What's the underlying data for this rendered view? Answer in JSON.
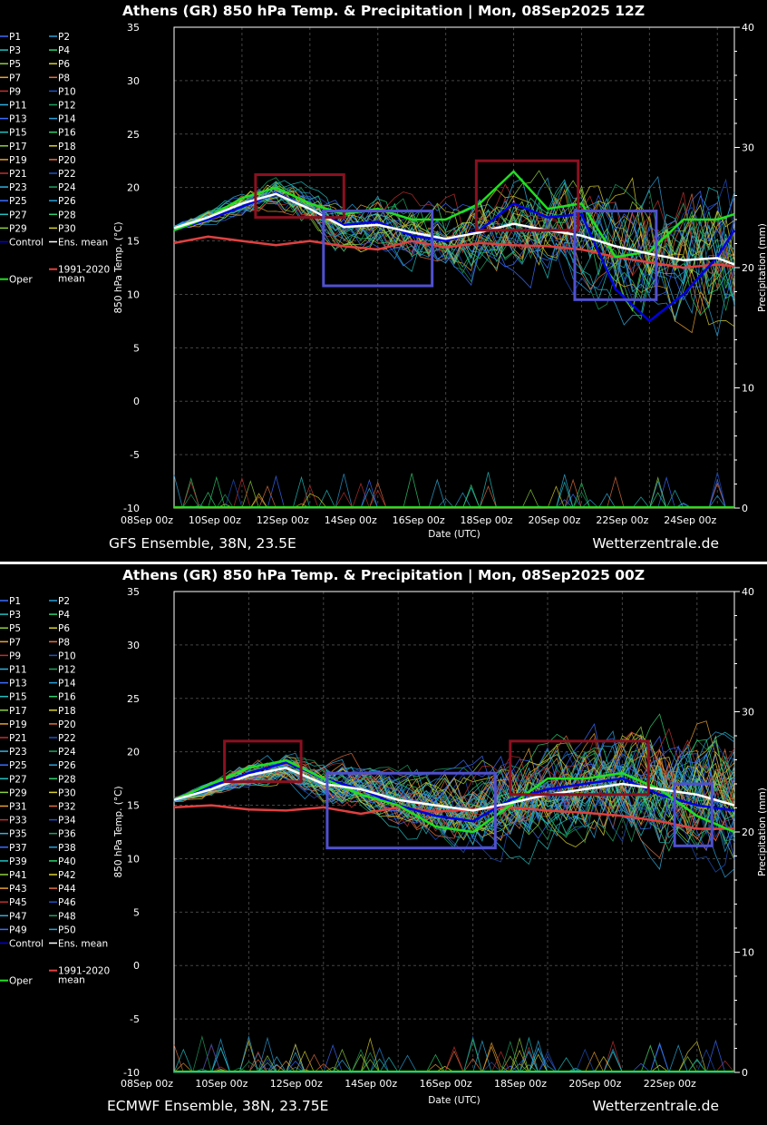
{
  "charts": [
    {
      "title": "Athens  (GR)  850 hPa Temp. & Precipitation | Mon, 08Sep2025 12Z",
      "footer_left": "GFS Ensemble, 38N, 23.5E",
      "footer_right": "Wetterzentrale.de",
      "xlabel": "Date (UTC)",
      "ylabel_left": "850 hPa Temp. (°C)",
      "ylabel_right": "Precipitation (mm)",
      "xticks": [
        "08Sep 00z",
        "10Sep 00z",
        "12Sep 00z",
        "14Sep 00z",
        "16Sep 00z",
        "18Sep 00z",
        "20Sep 00z",
        "22Sep 00z",
        "24Sep 00z"
      ],
      "legend": [
        "P1",
        "P2",
        "P3",
        "P4",
        "P5",
        "P6",
        "P7",
        "P8",
        "P9",
        "P10",
        "P11",
        "P12",
        "P13",
        "P14",
        "P15",
        "P16",
        "P17",
        "P18",
        "P19",
        "P20",
        "P21",
        "P22",
        "P23",
        "P24",
        "P25",
        "P26",
        "P27",
        "P28",
        "P29",
        "P30",
        "Control",
        "Ens. mean"
      ],
      "legend_clim": "1991-2020",
      "legend_clim2": "mean",
      "legend_oper": "Oper"
    },
    {
      "title": "Athens  (GR)  850 hPa Temp. & Precipitation | Mon, 08Sep2025 00Z",
      "footer_left": "ECMWF Ensemble, 38N, 23.75E",
      "footer_right": "Wetterzentrale.de",
      "xlabel": "Date (UTC)",
      "ylabel_left": "850 hPa Temp. (°C)",
      "ylabel_right": "Precipitation (mm)",
      "xticks": [
        "08Sep 00z",
        "10Sep 00z",
        "12Sep 00z",
        "14Sep 00z",
        "16Sep 00z",
        "18Sep 00z",
        "20Sep 00z",
        "22Sep 00z"
      ],
      "legend": [
        "P1",
        "P2",
        "P3",
        "P4",
        "P5",
        "P6",
        "P7",
        "P8",
        "P9",
        "P10",
        "P11",
        "P12",
        "P13",
        "P14",
        "P15",
        "P16",
        "P17",
        "P18",
        "P19",
        "P20",
        "P21",
        "P22",
        "P23",
        "P24",
        "P25",
        "P26",
        "P27",
        "P28",
        "P29",
        "P30",
        "P31",
        "P32",
        "P33",
        "P34",
        "P35",
        "P36",
        "P37",
        "P38",
        "P39",
        "P40",
        "P41",
        "P42",
        "P43",
        "P44",
        "P45",
        "P46",
        "P47",
        "P48",
        "P49",
        "P50",
        "Control",
        "Ens. mean"
      ],
      "legend_clim": "1991-2020",
      "legend_clim2": "mean",
      "legend_oper": "Oper"
    }
  ],
  "chart_data": [
    {
      "type": "line",
      "x_unit": "days since 08Sep 00z",
      "xlim": [
        0,
        16.5
      ],
      "ylim": [
        -10,
        35
      ],
      "yticks": [
        -10,
        -5,
        0,
        5,
        10,
        15,
        20,
        25,
        30,
        35
      ],
      "y2lim": [
        0,
        40
      ],
      "y2ticks": [
        0,
        10,
        20,
        30,
        40
      ],
      "series": [
        {
          "name": "Ens. mean",
          "x": [
            0,
            1,
            2,
            3,
            4,
            5,
            6,
            7,
            8,
            9,
            10,
            11,
            12,
            13,
            14,
            15,
            16,
            16.5
          ],
          "values": [
            16.2,
            17.2,
            18.5,
            19.4,
            18.0,
            16.3,
            16.5,
            15.8,
            15.2,
            15.8,
            16.6,
            16.0,
            15.5,
            14.5,
            13.8,
            13.2,
            13.4,
            12.8
          ]
        },
        {
          "name": "1991-2020 mean",
          "x": [
            0,
            1,
            2,
            3,
            4,
            5,
            6,
            7,
            8,
            9,
            10,
            11,
            12,
            13,
            14,
            15,
            16,
            16.5
          ],
          "values": [
            14.8,
            15.4,
            15.0,
            14.6,
            15.0,
            14.5,
            14.2,
            15.0,
            14.4,
            14.8,
            14.6,
            14.5,
            14.2,
            13.5,
            13.0,
            12.5,
            12.8,
            12.6
          ]
        },
        {
          "name": "Control",
          "x": [
            0,
            1,
            2,
            3,
            4,
            5,
            6,
            7,
            8,
            9,
            10,
            11,
            12,
            13,
            14,
            15,
            16,
            16.5
          ],
          "values": [
            16.0,
            17.0,
            18.2,
            19.5,
            18.0,
            16.5,
            16.8,
            15.5,
            15.0,
            16.0,
            18.5,
            17.2,
            17.5,
            10.5,
            7.5,
            10.0,
            13.5,
            16.0
          ]
        },
        {
          "name": "Oper",
          "x": [
            0,
            1,
            2,
            3,
            4,
            5,
            6,
            7,
            8,
            9,
            10,
            11,
            12,
            13,
            14,
            15,
            16,
            16.5
          ],
          "values": [
            16.0,
            17.2,
            19.0,
            20.0,
            18.5,
            17.5,
            18.0,
            17.0,
            17.0,
            18.5,
            21.5,
            18.0,
            18.5,
            13.5,
            14.0,
            17.0,
            17.0,
            17.5
          ]
        }
      ],
      "annotations": [
        {
          "type": "box",
          "color": "#8b1020",
          "x": [
            2.4,
            5.0
          ],
          "y": [
            17.2,
            21.2
          ]
        },
        {
          "type": "box",
          "color": "#5050d0",
          "x": [
            4.4,
            7.6
          ],
          "y": [
            10.8,
            17.8
          ]
        },
        {
          "type": "box",
          "color": "#8b1020",
          "x": [
            8.9,
            11.9
          ],
          "y": [
            16.0,
            22.5
          ]
        },
        {
          "type": "box",
          "color": "#5050d0",
          "x": [
            11.8,
            14.2
          ],
          "y": [
            9.5,
            17.8
          ]
        }
      ]
    },
    {
      "type": "line",
      "x_unit": "days since 08Sep 00z",
      "xlim": [
        0,
        15
      ],
      "ylim": [
        -10,
        35
      ],
      "yticks": [
        -10,
        -5,
        0,
        5,
        10,
        15,
        20,
        25,
        30,
        35
      ],
      "y2lim": [
        0,
        40
      ],
      "y2ticks": [
        0,
        10,
        20,
        30,
        40
      ],
      "series": [
        {
          "name": "Ens. mean",
          "x": [
            0,
            1,
            2,
            3,
            4,
            5,
            6,
            7,
            8,
            9,
            10,
            11,
            12,
            13,
            14,
            15
          ],
          "values": [
            15.5,
            16.5,
            17.8,
            18.5,
            17.0,
            16.5,
            15.5,
            15.0,
            14.5,
            15.2,
            16.0,
            16.5,
            17.0,
            16.5,
            16.0,
            15.0
          ]
        },
        {
          "name": "1991-2020 mean",
          "x": [
            0,
            1,
            2,
            3,
            4,
            5,
            6,
            7,
            8,
            9,
            10,
            11,
            12,
            13,
            14,
            15
          ],
          "values": [
            14.8,
            15.0,
            14.6,
            14.5,
            14.8,
            14.2,
            14.8,
            14.4,
            14.6,
            14.8,
            14.5,
            14.3,
            14.0,
            13.5,
            12.8,
            12.8
          ]
        },
        {
          "name": "Control",
          "x": [
            0,
            1,
            2,
            3,
            4,
            5,
            6,
            7,
            8,
            9,
            10,
            11,
            12,
            13,
            14,
            15
          ],
          "values": [
            15.5,
            16.8,
            18.0,
            19.0,
            17.5,
            16.5,
            15.0,
            14.0,
            13.5,
            15.5,
            16.5,
            17.0,
            17.5,
            16.0,
            15.0,
            14.5
          ]
        },
        {
          "name": "Oper",
          "x": [
            0,
            1,
            2,
            3,
            4,
            5,
            6,
            7,
            8,
            9,
            10,
            11,
            12,
            13,
            14,
            15
          ],
          "values": [
            15.5,
            17.0,
            18.5,
            19.2,
            17.5,
            16.0,
            15.0,
            13.0,
            12.5,
            15.0,
            17.5,
            17.5,
            18.0,
            16.5,
            14.0,
            12.5
          ]
        }
      ],
      "annotations": [
        {
          "type": "box",
          "color": "#8b1020",
          "x": [
            1.35,
            3.4
          ],
          "y": [
            17.2,
            21.0
          ]
        },
        {
          "type": "box",
          "color": "#5050d0",
          "x": [
            4.1,
            8.6
          ],
          "y": [
            11.0,
            18.0
          ]
        },
        {
          "type": "box",
          "color": "#8b1020",
          "x": [
            9.0,
            12.7
          ],
          "y": [
            16.0,
            21.0
          ]
        },
        {
          "type": "box",
          "color": "#5050d0",
          "x": [
            13.4,
            14.4
          ],
          "y": [
            11.2,
            17.0
          ]
        }
      ]
    }
  ],
  "colors": {
    "palette": [
      "#3b6cff",
      "#2a9fd8",
      "#22c0c0",
      "#2fd070",
      "#8fd040",
      "#d8d030",
      "#e8a030",
      "#e07040",
      "#c03030",
      "#2050c0",
      "#30b0e0",
      "#20a060"
    ],
    "control": "#0000e0",
    "oper": "#20e020",
    "ens_mean": "#ffffff",
    "clim": "#e04040"
  }
}
